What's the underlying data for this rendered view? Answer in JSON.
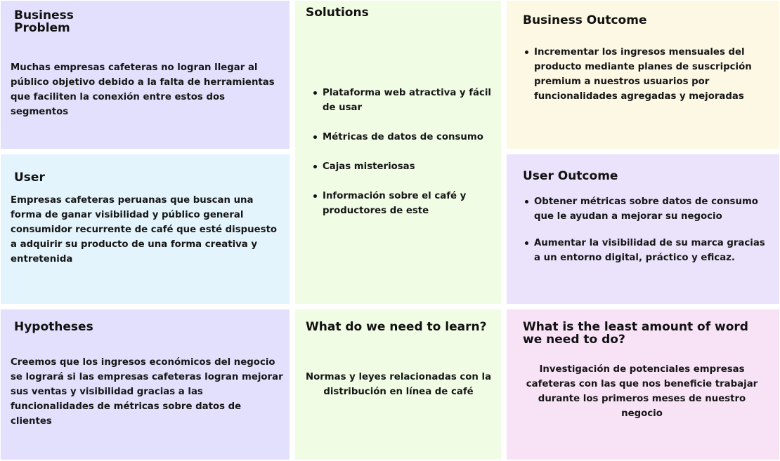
{
  "colors": {
    "purple": "#e2e0fc",
    "green": "#f1fce5",
    "cream": "#fdf8e4",
    "blue": "#e3f4fc",
    "lavender": "#ebe3fb",
    "pink": "#f7e2f6"
  },
  "business_problem": {
    "title": "Business\nProblem",
    "text": "Muchas empresas cafeteras no logran llegar al público objetivo debido a la falta de herramientas que faciliten la conexión entre estos dos segmentos"
  },
  "solutions": {
    "title": "Solutions",
    "items": [
      "Plataforma web atractiva y fácil de usar",
      "Métricas de datos de consumo",
      "Cajas misteriosas",
      "Información sobre el café y productores de este"
    ]
  },
  "business_outcome": {
    "title": "Business Outcome",
    "items": [
      "Incrementar los ingresos mensuales del producto mediante planes de suscripción premium a nuestros usuarios por funcionalidades agregadas y mejoradas"
    ]
  },
  "user": {
    "title": "User",
    "text": "Empresas cafeteras peruanas que buscan una forma de ganar visibilidad y público general consumidor recurrente de café que esté dispuesto a adquirir su producto de una forma creativa y entretenida"
  },
  "user_outcome": {
    "title": "User Outcome",
    "items": [
      "Obtener métricas sobre datos de consumo que le ayudan a mejorar su negocio",
      "Aumentar la visibilidad de su marca gracias a un entorno digital, práctico y eficaz."
    ]
  },
  "hypotheses": {
    "title": "Hypotheses",
    "text": "Creemos que los ingresos económicos del negocio se logrará si las empresas cafeteras logran mejorar sus ventas y visibilidad gracias a las funcionalidades de métricas sobre datos de clientes"
  },
  "learn": {
    "title": "What do we need to learn?",
    "text": "Normas y leyes relacionadas con la distribución en línea de café"
  },
  "least_work": {
    "title": "What is the least amount of word\nwe need to do?",
    "text": "Investigación de potenciales empresas cafeteras con las que nos beneficie trabajar durante los primeros meses de nuestro negocio"
  }
}
